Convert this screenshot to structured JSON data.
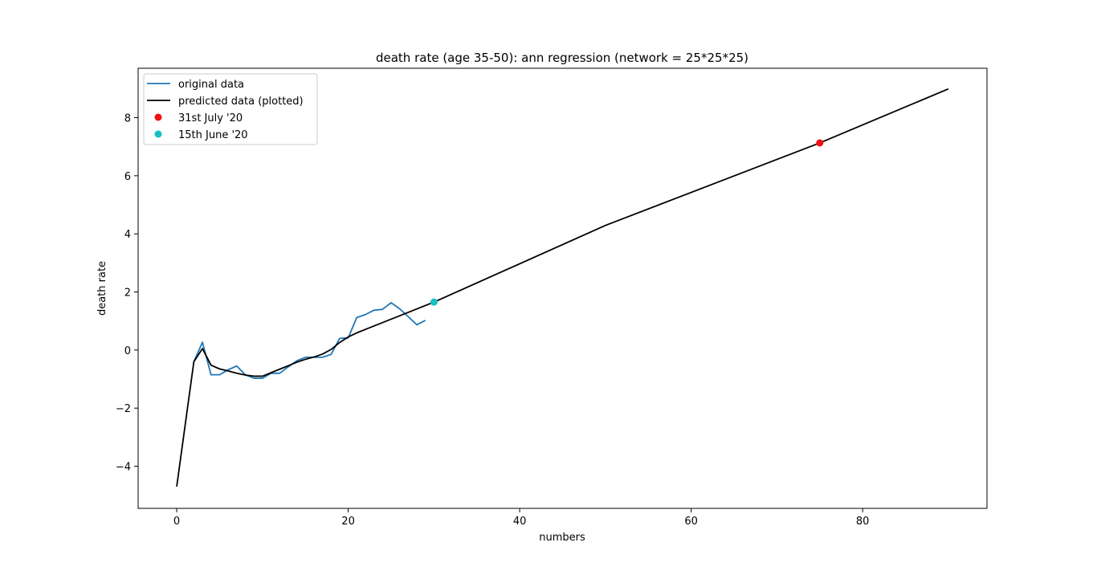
{
  "chart_data": {
    "type": "line",
    "title": "death rate (age 35-50): ann regression (network = 25*25*25)",
    "xlabel": "numbers",
    "ylabel": "death rate",
    "xlim": [
      -4.5,
      94.5
    ],
    "ylim": [
      -5.45,
      9.7
    ],
    "xticks": [
      0,
      20,
      40,
      60,
      80
    ],
    "yticks": [
      -4,
      -2,
      0,
      2,
      4,
      6,
      8
    ],
    "grid": false,
    "legend_position": "top-left",
    "series": [
      {
        "name": "original data",
        "kind": "line",
        "color": "#1f77b4",
        "x": [
          2,
          3,
          4,
          5,
          6,
          7,
          8,
          9,
          10,
          11,
          12,
          13,
          14,
          15,
          16,
          17,
          18,
          19,
          20,
          21,
          22,
          23,
          24,
          25,
          26,
          27,
          28,
          29
        ],
        "y": [
          -0.4,
          0.27,
          -0.85,
          -0.85,
          -0.68,
          -0.55,
          -0.85,
          -0.97,
          -0.97,
          -0.8,
          -0.8,
          -0.58,
          -0.37,
          -0.25,
          -0.25,
          -0.25,
          -0.15,
          0.4,
          0.42,
          1.12,
          1.22,
          1.37,
          1.4,
          1.63,
          1.42,
          1.15,
          0.87,
          1.02
        ]
      },
      {
        "name": "predicted data (plotted)",
        "kind": "line",
        "color": "#000000",
        "x": [
          0,
          2,
          3,
          4,
          5,
          6,
          7,
          8,
          9,
          10,
          11,
          12,
          13,
          14,
          15,
          16,
          17,
          18,
          19,
          20,
          21,
          22,
          30,
          50,
          75,
          90
        ],
        "y": [
          -4.7,
          -0.4,
          0.05,
          -0.52,
          -0.65,
          -0.72,
          -0.8,
          -0.86,
          -0.9,
          -0.9,
          -0.78,
          -0.66,
          -0.54,
          -0.42,
          -0.32,
          -0.24,
          -0.14,
          0.02,
          0.26,
          0.45,
          0.59,
          0.71,
          1.65,
          4.29,
          7.13,
          8.99
        ]
      },
      {
        "name": "31st July '20",
        "kind": "scatter",
        "color": "#ee1111",
        "x": [
          75
        ],
        "y": [
          7.13
        ]
      },
      {
        "name": "15th June '20",
        "kind": "scatter",
        "color": "#17bfbf",
        "x": [
          30
        ],
        "y": [
          1.65
        ]
      }
    ]
  }
}
